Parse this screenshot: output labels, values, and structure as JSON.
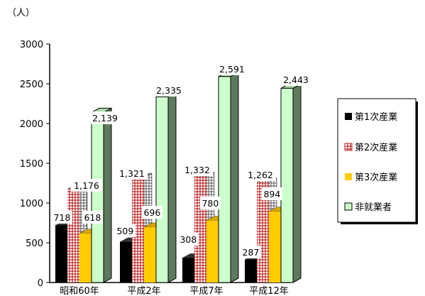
{
  "chart_data": {
    "type": "bar",
    "unit_label": "（人）",
    "categories": [
      "昭和60年",
      "平成2年",
      "平成7年",
      "平成12年"
    ],
    "series": [
      {
        "name": "第1次産業",
        "values": [
          718,
          509,
          308,
          287
        ],
        "color": "#000000"
      },
      {
        "name": "第2次産業",
        "values": [
          1176,
          1321,
          1332,
          1262
        ],
        "color": "#cc0000"
      },
      {
        "name": "第3次産業",
        "values": [
          618,
          696,
          780,
          894
        ],
        "color": "#ffcc00"
      },
      {
        "name": "非就業者",
        "values": [
          2139,
          2335,
          2591,
          2443
        ],
        "color": "#ccffcc"
      }
    ],
    "data_labels": [
      [
        "718",
        "1,176",
        "618",
        "2,139"
      ],
      [
        "509",
        "1,321",
        "696",
        "2,335"
      ],
      [
        "308",
        "1,332",
        "780",
        "2,591"
      ],
      [
        "287",
        "1,262",
        "894",
        "2,443"
      ]
    ],
    "y_ticks": [
      "0",
      "500",
      "1000",
      "1500",
      "2000",
      "2500",
      "3000"
    ],
    "ylim": [
      0,
      3000
    ],
    "legend_position": "right",
    "style_3d": true,
    "side_color": "#5e7a5e"
  }
}
